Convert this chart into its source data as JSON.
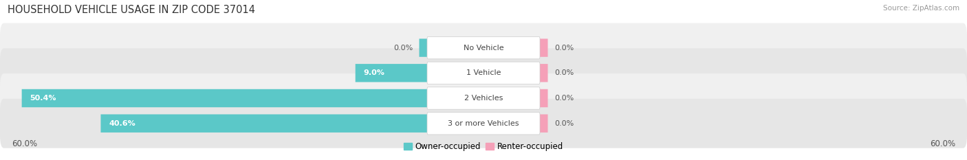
{
  "title": "HOUSEHOLD VEHICLE USAGE IN ZIP CODE 37014",
  "source": "Source: ZipAtlas.com",
  "categories": [
    "No Vehicle",
    "1 Vehicle",
    "2 Vehicles",
    "3 or more Vehicles"
  ],
  "owner_values": [
    0.0,
    9.0,
    50.4,
    40.6
  ],
  "renter_values": [
    0.0,
    0.0,
    0.0,
    0.0
  ],
  "owner_color": "#5bc8c8",
  "renter_color": "#f5a0b8",
  "max_value": 60.0,
  "title_fontsize": 10.5,
  "source_fontsize": 7.5,
  "axis_label_fontsize": 8.5,
  "bar_label_fontsize": 8,
  "category_fontsize": 8,
  "legend_fontsize": 8.5,
  "fig_bg_color": "#ffffff",
  "row_bg_color_odd": "#f0f0f0",
  "row_bg_color_even": "#e6e6e6",
  "legend_owner": "Owner-occupied",
  "legend_renter": "Renter-occupied"
}
